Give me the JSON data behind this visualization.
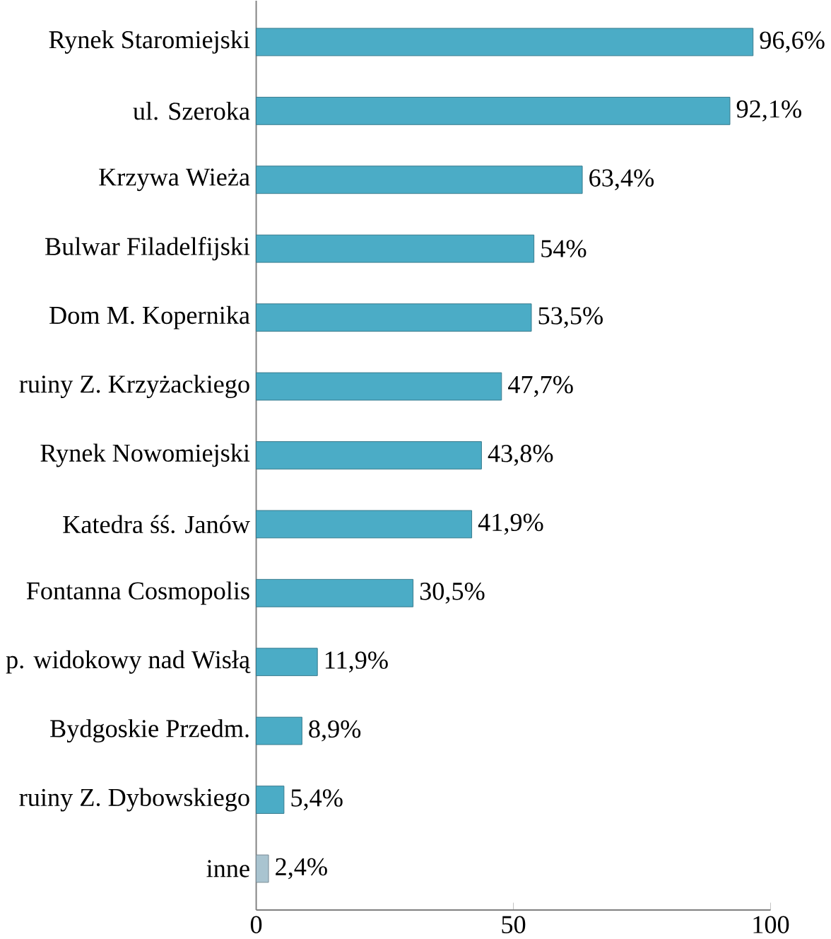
{
  "chart_data": {
    "type": "bar",
    "orientation": "horizontal",
    "categories": [
      "Rynek Staromiejski",
      "ul. Szeroka",
      "Krzywa Wieża",
      "Bulwar Filadelfijski",
      "Dom M. Kopernika",
      "ruiny Z. Krzyżackiego",
      "Rynek Nowomiejski",
      "Katedra śś. Janów",
      "Fontanna Cosmopolis",
      "p. widokowy nad Wisłą",
      "Bydgoskie Przedm.",
      "ruiny Z. Dybowskiego",
      "inne"
    ],
    "values": [
      96.6,
      92.1,
      63.4,
      54,
      53.5,
      47.7,
      43.8,
      41.9,
      30.5,
      11.9,
      8.9,
      5.4,
      2.4
    ],
    "value_labels": [
      "96,6%",
      "92,1%",
      "63,4%",
      "54%",
      "53,5%",
      "47,7%",
      "43,8%",
      "41,9%",
      "30,5%",
      "11,9%",
      "8,9%",
      "5,4%",
      "2,4%"
    ],
    "colors": [
      "#4bacc6",
      "#4bacc6",
      "#4bacc6",
      "#4bacc6",
      "#4bacc6",
      "#4bacc6",
      "#4bacc6",
      "#4bacc6",
      "#4bacc6",
      "#4bacc6",
      "#4bacc6",
      "#4bacc6",
      "#a9c4d0"
    ],
    "xlim": [
      0,
      100
    ],
    "xticks": [
      0,
      50,
      100
    ]
  }
}
